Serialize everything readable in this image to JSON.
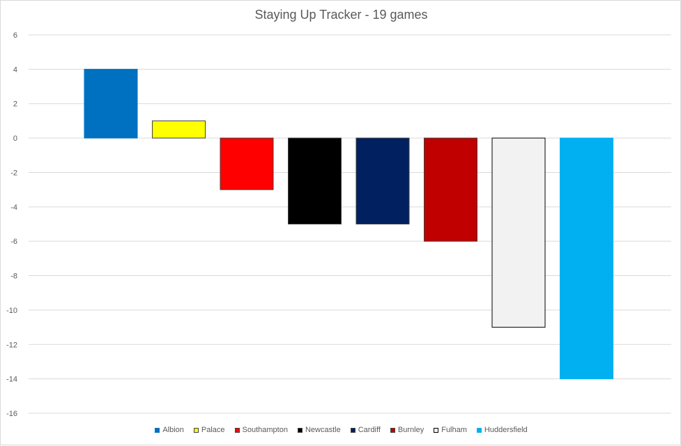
{
  "chart_data": {
    "type": "bar",
    "title": "Staying Up Tracker - 19 games",
    "xlabel": "",
    "ylabel": "",
    "ylim": [
      -16,
      6
    ],
    "yticks": [
      6,
      4,
      2,
      0,
      -2,
      -4,
      -6,
      -8,
      -10,
      -12,
      -14,
      -16
    ],
    "grid": true,
    "legend_position": "bottom",
    "series": [
      {
        "name": "Albion",
        "value": 4,
        "color": "#0070c0",
        "border": "#0070c0"
      },
      {
        "name": "Palace",
        "value": 1,
        "color": "#ffff00",
        "border": "#404040"
      },
      {
        "name": "Southampton",
        "value": -3,
        "color": "#ff0000",
        "border": "#404040"
      },
      {
        "name": "Newcastle",
        "value": -5,
        "color": "#000000",
        "border": "#404040"
      },
      {
        "name": "Cardiff",
        "value": -5,
        "color": "#002060",
        "border": "#404040"
      },
      {
        "name": "Burnley",
        "value": -6,
        "color": "#c00000",
        "border": "#404040"
      },
      {
        "name": "Fulham",
        "value": -11,
        "color": "#f2f2f2",
        "border": "#000000"
      },
      {
        "name": "Huddersfield",
        "value": -14,
        "color": "#00b0f0",
        "border": "#00b0f0"
      }
    ]
  }
}
